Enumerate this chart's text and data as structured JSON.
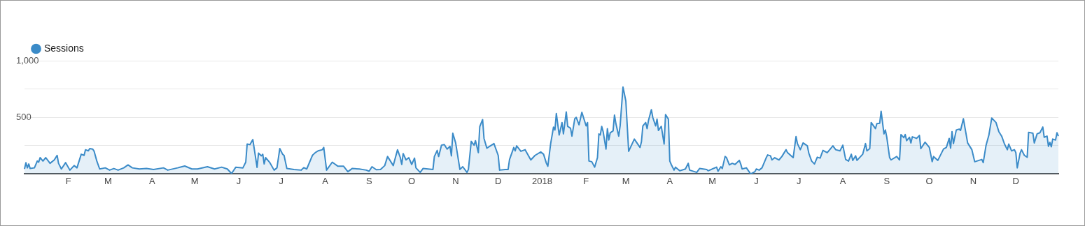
{
  "chart_data": {
    "type": "area",
    "categories": [
      null,
      null,
      null,
      null,
      null,
      null,
      null,
      null,
      null,
      null,
      null,
      null,
      null,
      null,
      null,
      null,
      null,
      null,
      null,
      null,
      null,
      null,
      null,
      null,
      null,
      null,
      null,
      null,
      null,
      null,
      null,
      "F",
      null,
      null,
      null,
      null,
      null,
      null,
      null,
      null,
      null,
      null,
      null,
      null,
      null,
      null,
      null,
      null,
      null,
      null,
      null,
      null,
      null,
      null,
      null,
      null,
      null,
      null,
      null,
      "M",
      null,
      null,
      null,
      null,
      null,
      null,
      null,
      null,
      null,
      null,
      null,
      null,
      null,
      null,
      null,
      null,
      null,
      null,
      null,
      null,
      null,
      null,
      null,
      null,
      null,
      null,
      null,
      null,
      null,
      null,
      "A",
      null,
      null,
      null,
      null,
      null,
      null,
      null,
      null,
      null,
      null,
      null,
      null,
      null,
      null,
      null,
      null,
      null,
      null,
      null,
      null,
      null,
      null,
      null,
      null,
      null,
      null,
      null,
      null,
      null,
      "M",
      null,
      null,
      null,
      null,
      null,
      null,
      null,
      null,
      null,
      null,
      null,
      null,
      null,
      null,
      null,
      null,
      null,
      null,
      null,
      null,
      null,
      null,
      null,
      null,
      null,
      null,
      null,
      null,
      null,
      null,
      "J",
      null,
      null,
      null,
      null,
      null,
      null,
      null,
      null,
      null,
      null,
      null,
      null,
      null,
      null,
      null,
      null,
      null,
      null,
      null,
      null,
      null,
      null,
      null,
      null,
      null,
      null,
      null,
      null,
      null,
      "J",
      null,
      null,
      null,
      null,
      null,
      null,
      null,
      null,
      null,
      null,
      null,
      null,
      null,
      null,
      null,
      null,
      null,
      null,
      null,
      null,
      null,
      null,
      null,
      null,
      null,
      null,
      null,
      null,
      null,
      null,
      "A",
      null,
      null,
      null,
      null,
      null,
      null,
      null,
      null,
      null,
      null,
      null,
      null,
      null,
      null,
      null,
      null,
      null,
      null,
      null,
      null,
      null,
      null,
      null,
      null,
      null,
      null,
      null,
      null,
      null,
      null,
      "S",
      null,
      null,
      null,
      null,
      null,
      null,
      null,
      null,
      null,
      null,
      null,
      null,
      null,
      null,
      null,
      null,
      null,
      null,
      null,
      null,
      null,
      null,
      null,
      null,
      null,
      null,
      null,
      null,
      null,
      "O",
      null,
      null,
      null,
      null,
      null,
      null,
      null,
      null,
      null,
      null,
      null,
      null,
      null,
      null,
      null,
      null,
      null,
      null,
      null,
      null,
      null,
      null,
      null,
      null,
      null,
      null,
      null,
      null,
      null,
      null,
      "N",
      null,
      null,
      null,
      null,
      null,
      null,
      null,
      null,
      null,
      null,
      null,
      null,
      null,
      null,
      null,
      null,
      null,
      null,
      null,
      null,
      null,
      null,
      null,
      null,
      null,
      null,
      null,
      null,
      null,
      "D",
      null,
      null,
      null,
      null,
      null,
      null,
      null,
      null,
      null,
      null,
      null,
      null,
      null,
      null,
      null,
      null,
      null,
      null,
      null,
      null,
      null,
      null,
      null,
      null,
      null,
      null,
      null,
      null,
      null,
      null,
      "2018",
      null,
      null,
      null,
      null,
      null,
      null,
      null,
      null,
      null,
      null,
      null,
      null,
      null,
      null,
      null,
      null,
      null,
      null,
      null,
      null,
      null,
      null,
      null,
      null,
      null,
      null,
      null,
      null,
      null,
      null,
      "F",
      null,
      null,
      null,
      null,
      null,
      null,
      null,
      null,
      null,
      null,
      null,
      null,
      null,
      null,
      null,
      null,
      null,
      null,
      null,
      null,
      null,
      null,
      null,
      null,
      null,
      null,
      null,
      "M",
      null,
      null,
      null,
      null,
      null,
      null,
      null,
      null,
      null,
      null,
      null,
      null,
      null,
      null,
      null,
      null,
      null,
      null,
      null,
      null,
      null,
      null,
      null,
      null,
      null,
      null,
      null,
      null,
      null,
      null,
      "A",
      null,
      null,
      null,
      null,
      null,
      null,
      null,
      null,
      null,
      null,
      null,
      null,
      null,
      null,
      null,
      null,
      null,
      null,
      null,
      null,
      null,
      null,
      null,
      null,
      null,
      null,
      null,
      null,
      null,
      "M",
      null,
      null,
      null,
      null,
      null,
      null,
      null,
      null,
      null,
      null,
      null,
      null,
      null,
      null,
      null,
      null,
      null,
      null,
      null,
      null,
      null,
      null,
      null,
      null,
      null,
      null,
      null,
      null,
      null,
      null,
      "J",
      null,
      null,
      null,
      null,
      null,
      null,
      null,
      null,
      null,
      null,
      null,
      null,
      null,
      null,
      null,
      null,
      null,
      null,
      null,
      null,
      null,
      null,
      null,
      null,
      null,
      null,
      null,
      null,
      null,
      "J",
      null,
      null,
      null,
      null,
      null,
      null,
      null,
      null,
      null,
      null,
      null,
      null,
      null,
      null,
      null,
      null,
      null,
      null,
      null,
      null,
      null,
      null,
      null,
      null,
      null,
      null,
      null,
      null,
      null,
      null,
      "A",
      null,
      null,
      null,
      null,
      null,
      null,
      null,
      null,
      null,
      null,
      null,
      null,
      null,
      null,
      null,
      null,
      null,
      null,
      null,
      null,
      null,
      null,
      null,
      null,
      null,
      null,
      null,
      null,
      null,
      null,
      "S",
      null,
      null,
      null,
      null,
      null,
      null,
      null,
      null,
      null,
      null,
      null,
      null,
      null,
      null,
      null,
      null,
      null,
      null,
      null,
      null,
      null,
      null,
      null,
      null,
      null,
      null,
      null,
      null,
      null,
      "O",
      null,
      null,
      null,
      null,
      null,
      null,
      null,
      null,
      null,
      null,
      null,
      null,
      null,
      null,
      null,
      null,
      null,
      null,
      null,
      null,
      null,
      null,
      null,
      null,
      null,
      null,
      null,
      null,
      null,
      null,
      "N",
      null,
      null,
      null,
      null,
      null,
      null,
      null,
      null,
      null,
      null,
      null,
      null,
      null,
      null,
      null,
      null,
      null,
      null,
      null,
      null,
      null,
      null,
      null,
      null,
      null,
      null,
      null,
      null,
      null,
      "D",
      null,
      null,
      null,
      null,
      null,
      null,
      null,
      null,
      null,
      null,
      null,
      null,
      null,
      null,
      null,
      null,
      null,
      null,
      null,
      null,
      null,
      null,
      null,
      null,
      null,
      null,
      null,
      null,
      null,
      null
    ],
    "series": [
      {
        "name": "Sessions",
        "color": "#3b8bc8",
        "values": [
          44,
          100,
          54,
          88,
          48,
          null,
          null,
          54,
          null,
          114,
          104,
          144,
          null,
          114,
          null,
          144,
          null,
          null,
          94,
          null,
          null,
          124,
          null,
          164,
          94,
          null,
          44,
          null,
          null,
          100,
          null,
          null,
          34,
          null,
          null,
          74,
          null,
          54,
          null,
          null,
          174,
          null,
          164,
          214,
          null,
          204,
          224,
          null,
          220,
          204,
          null,
          114,
          null,
          44,
          null,
          null,
          null,
          54,
          null,
          null,
          34,
          null,
          null,
          48,
          null,
          null,
          34,
          null,
          null,
          null,
          54,
          null,
          null,
          80,
          null,
          null,
          54,
          null,
          null,
          null,
          null,
          44,
          null,
          null,
          null,
          null,
          48,
          null,
          null,
          null,
          null,
          40,
          null,
          null,
          null,
          null,
          null,
          null,
          54,
          null,
          null,
          34,
          null,
          null,
          null,
          null,
          null,
          null,
          54,
          null,
          null,
          null,
          null,
          70,
          null,
          null,
          null,
          null,
          44,
          null,
          null,
          null,
          44,
          null,
          null,
          null,
          null,
          null,
          null,
          64,
          null,
          null,
          null,
          null,
          44,
          null,
          null,
          null,
          null,
          60,
          null,
          null,
          null,
          44,
          null,
          null,
          4,
          null,
          null,
          60,
          null,
          null,
          null,
          null,
          54,
          null,
          104,
          264,
          null,
          260,
          null,
          304,
          null,
          null,
          58,
          184,
          null,
          160,
          174,
          88,
          144,
          null,
          null,
          100,
          null,
          null,
          34,
          null,
          54,
          null,
          224,
          null,
          174,
          164,
          null,
          48,
          null,
          null,
          null,
          null,
          40,
          null,
          null,
          null,
          null,
          34,
          null,
          56,
          null,
          44,
          null,
          null,
          null,
          164,
          null,
          188,
          null,
          204,
          null,
          null,
          214,
          234,
          null,
          34,
          null,
          null,
          null,
          104,
          null,
          null,
          null,
          68,
          null,
          null,
          null,
          68,
          null,
          null,
          20,
          null,
          null,
          48,
          null,
          null,
          null,
          null,
          44,
          null,
          null,
          null,
          null,
          34,
          null,
          24,
          null,
          64,
          null,
          null,
          38,
          null,
          null,
          40,
          null,
          null,
          74,
          null,
          154,
          null,
          null,
          null,
          74,
          null,
          null,
          214,
          null,
          144,
          84,
          180,
          null,
          124,
          null,
          144,
          null,
          84,
          null,
          140,
          54,
          null,
          null,
          14,
          null,
          48,
          null,
          null,
          null,
          null,
          null,
          null,
          40,
          154,
          null,
          208,
          154,
          null,
          254,
          null,
          260,
          null,
          220,
          null,
          244,
          160,
          360,
          null,
          274,
          null,
          null,
          40,
          null,
          64,
          null,
          null,
          14,
          40,
          null,
          288,
          null,
          254,
          294,
          null,
          188,
          418,
          null,
          480,
          314,
          null,
          228,
          null,
          null,
          null,
          null,
          268,
          null,
          null,
          164,
          34,
          null,
          null,
          null,
          40,
          null,
          40,
          128,
          null,
          null,
          234,
          204,
          248,
          null,
          null,
          200,
          null,
          null,
          214,
          null,
          null,
          null,
          124,
          null,
          null,
          164,
          null,
          null,
          null,
          194,
          null,
          174,
          null,
          94,
          68,
          null,
          268,
          null,
          414,
          388,
          534,
          null,
          344,
          null,
          454,
          354,
          null,
          548,
          420,
          null,
          404,
          334,
          null,
          488,
          500,
          null,
          434,
          null,
          544,
          null,
          464,
          424,
          454,
          114,
          null,
          108,
          null,
          60,
          null,
          144,
          354,
          344,
          420,
          374,
          null,
          220,
          400,
          300,
          364,
          null,
          380,
          520,
          444,
          null,
          334,
          428,
          null,
          768,
          null,
          644,
          null,
          200,
          null,
          null,
          null,
          308,
          null,
          null,
          null,
          234,
          284,
          424,
          null,
          454,
          400,
          474,
          null,
          568,
          500,
          null,
          424,
          484,
          384,
          null,
          420,
          null,
          264,
          524,
          null,
          484,
          114,
          84,
          null,
          34,
          60,
          null,
          null,
          28,
          null,
          null,
          null,
          44,
          null,
          94,
          34,
          null,
          null,
          null,
          null,
          14,
          null,
          48,
          null,
          null,
          null,
          null,
          40,
          28,
          null,
          null,
          null,
          null,
          null,
          60,
          24,
          null,
          64,
          48,
          null,
          154,
          144,
          null,
          80,
          null,
          94,
          null,
          84,
          null,
          null,
          120,
          88,
          44,
          null,
          null,
          54,
          null,
          null,
          0,
          null,
          null,
          20,
          44,
          null,
          34,
          null,
          54,
          null,
          null,
          144,
          168,
          null,
          160,
          124,
          null,
          144,
          null,
          null,
          124,
          null,
          154,
          null,
          null,
          214,
          188,
          null,
          null,
          null,
          144,
          null,
          330,
          268,
          null,
          214,
          null,
          274,
          null,
          null,
          248,
          184,
          null,
          114,
          null,
          88,
          null,
          148,
          null,
          140,
          null,
          208,
          null,
          null,
          188,
          null,
          null,
          null,
          248,
          null,
          214,
          null,
          null,
          204,
          null,
          254,
          null,
          128,
          null,
          114,
          null,
          174,
          120,
          null,
          160,
          120,
          null,
          null,
          null,
          174,
          null,
          268,
          204,
          null,
          224,
          454,
          null,
          null,
          400,
          444,
          null,
          448,
          554,
          null,
          354,
          388,
          324,
          null,
          144,
          124,
          null,
          null,
          null,
          154,
          null,
          124,
          348,
          null,
          320,
          348,
          294,
          null,
          324,
          274,
          328,
          null,
          null,
          314,
          null,
          340,
          224,
          null,
          null,
          280,
          null,
          null,
          234,
          null,
          108,
          154,
          null,
          null,
          120,
          null,
          null,
          null,
          220,
          null,
          234,
          null,
          314,
          228,
          374,
          268,
          null,
          388,
          null,
          396,
          384,
          null,
          488,
          null,
          null,
          274,
          null,
          234,
          214,
          null,
          108,
          null,
          null,
          null,
          null,
          128,
          100,
          null,
          254,
          null,
          344,
          null,
          494,
          null,
          null,
          454,
          null,
          374,
          null,
          334,
          null,
          264,
          null,
          214,
          264,
          null,
          204,
          null,
          214,
          188,
          54,
          null,
          184,
          214,
          null,
          164,
          null,
          148,
          368,
          null,
          null,
          360,
          274,
          null,
          354,
          null,
          364,
          null,
          414,
          324,
          null,
          334,
          244,
          280,
          240,
          308,
          null,
          300,
          364,
          334
        ]
      }
    ],
    "ylim": [
      0,
      1000
    ],
    "yticks": [
      {
        "value": 250,
        "label": null
      },
      500,
      {
        "value": 750,
        "label": null
      },
      {
        "value": 1000,
        "label": "1,000"
      }
    ],
    "grid": "y",
    "legend": "top left"
  }
}
